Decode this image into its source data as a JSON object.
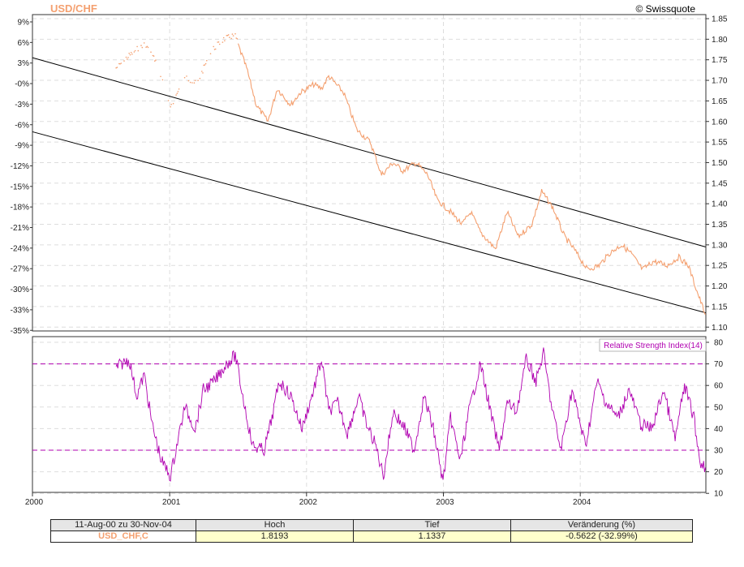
{
  "header": {
    "title": "USD/CHF",
    "credit": "© Swissquote"
  },
  "colors": {
    "price": "#f4a070",
    "title": "#f4a070",
    "rsi": "#b000b0",
    "channel": "#000000",
    "grid": "#dddddd"
  },
  "chart_data": [
    {
      "type": "line",
      "title": "USD/CHF",
      "x_axis_years": [
        "2000",
        "2001",
        "2002",
        "2003",
        "2004"
      ],
      "left_axis_labels": [
        "9%",
        "6%",
        "3%",
        "-0%",
        "-3%",
        "-6%",
        "-9%",
        "-12%",
        "-15%",
        "-18%",
        "-21%",
        "-24%",
        "-27%",
        "-30%",
        "-33%",
        "-35%"
      ],
      "right_axis_labels": [
        "1.85",
        "1.80",
        "1.75",
        "1.70",
        "1.65",
        "1.60",
        "1.55",
        "1.50",
        "1.45",
        "1.40",
        "1.35",
        "1.30",
        "1.25",
        "1.20",
        "1.15",
        "1.10"
      ],
      "ylim": [
        1.1,
        1.85
      ],
      "series": [
        {
          "name": "USD_CHF,C",
          "x": [
            "2000-08-11",
            "2000-09-15",
            "2000-10-25",
            "2000-11-30",
            "2001-01-03",
            "2001-02-10",
            "2001-03-15",
            "2001-04-20",
            "2001-05-25",
            "2001-06-25",
            "2001-07-05",
            "2001-07-25",
            "2001-08-20",
            "2001-09-20",
            "2001-10-15",
            "2001-11-20",
            "2001-12-15",
            "2002-01-20",
            "2002-02-10",
            "2002-03-01",
            "2002-04-10",
            "2002-05-15",
            "2002-06-20",
            "2002-07-20",
            "2002-08-20",
            "2002-09-15",
            "2002-10-20",
            "2002-11-20",
            "2002-12-15",
            "2003-01-20",
            "2003-02-20",
            "2003-03-15",
            "2003-04-10",
            "2003-05-20",
            "2003-06-20",
            "2003-07-20",
            "2003-08-25",
            "2003-09-20",
            "2003-10-20",
            "2003-11-20",
            "2003-12-15",
            "2004-01-20",
            "2004-02-20",
            "2004-03-20",
            "2004-04-20",
            "2004-05-15",
            "2004-06-15",
            "2004-07-15",
            "2004-08-20",
            "2004-09-20",
            "2004-10-15",
            "2004-11-10",
            "2004-11-30"
          ],
          "values": [
            1.73,
            1.76,
            1.79,
            1.74,
            1.63,
            1.71,
            1.69,
            1.77,
            1.8,
            1.81,
            1.78,
            1.73,
            1.64,
            1.6,
            1.68,
            1.64,
            1.67,
            1.69,
            1.68,
            1.71,
            1.67,
            1.58,
            1.55,
            1.47,
            1.5,
            1.48,
            1.5,
            1.47,
            1.41,
            1.38,
            1.35,
            1.38,
            1.33,
            1.29,
            1.38,
            1.32,
            1.35,
            1.43,
            1.39,
            1.32,
            1.29,
            1.24,
            1.25,
            1.28,
            1.3,
            1.28,
            1.24,
            1.26,
            1.25,
            1.27,
            1.25,
            1.18,
            1.13
          ]
        }
      ],
      "low_points_dotted_until": "2001-07-01"
    },
    {
      "type": "line",
      "title": "Relative Strength Index(14)",
      "right_axis_labels": [
        "80",
        "70",
        "60",
        "50",
        "40",
        "30",
        "20",
        "10"
      ],
      "ylim": [
        10,
        80
      ],
      "reference_lines": [
        70,
        30
      ],
      "series": [
        {
          "name": "Relative Strength Index(14)",
          "x": [
            "2000-08-11",
            "2000-08-25",
            "2000-09-15",
            "2000-10-05",
            "2000-10-25",
            "2000-11-15",
            "2000-12-10",
            "2001-01-03",
            "2001-02-10",
            "2001-03-10",
            "2001-04-01",
            "2001-05-01",
            "2001-06-01",
            "2001-06-25",
            "2001-07-15",
            "2001-08-10",
            "2001-09-10",
            "2001-10-01",
            "2001-10-20",
            "2001-11-20",
            "2001-12-20",
            "2002-01-20",
            "2002-02-10",
            "2002-03-01",
            "2002-03-25",
            "2002-04-20",
            "2002-05-20",
            "2002-06-10",
            "2002-07-05",
            "2002-07-25",
            "2002-08-20",
            "2002-09-20",
            "2002-10-15",
            "2002-11-10",
            "2002-12-05",
            "2002-12-31",
            "2003-01-20",
            "2003-02-15",
            "2003-03-10",
            "2003-04-10",
            "2003-05-10",
            "2003-05-30",
            "2003-06-20",
            "2003-07-15",
            "2003-08-10",
            "2003-09-05",
            "2003-09-25",
            "2003-10-15",
            "2003-11-10",
            "2003-12-10",
            "2004-01-15",
            "2004-02-15",
            "2004-03-10",
            "2004-04-10",
            "2004-05-10",
            "2004-06-10",
            "2004-07-10",
            "2004-08-10",
            "2004-09-10",
            "2004-10-05",
            "2004-10-30",
            "2004-11-15",
            "2004-11-30"
          ],
          "values": [
            68,
            70,
            72,
            55,
            65,
            42,
            25,
            18,
            50,
            40,
            58,
            62,
            70,
            74,
            55,
            32,
            30,
            45,
            62,
            55,
            40,
            58,
            72,
            48,
            52,
            38,
            55,
            42,
            32,
            18,
            48,
            40,
            30,
            55,
            40,
            15,
            45,
            25,
            48,
            70,
            45,
            30,
            52,
            48,
            72,
            62,
            75,
            52,
            30,
            58,
            32,
            62,
            52,
            45,
            58,
            42,
            40,
            58,
            35,
            60,
            45,
            25,
            22
          ]
        }
      ]
    }
  ],
  "summary_table": {
    "headers": [
      "11-Aug-00 zu 30-Nov-04",
      "Hoch",
      "Tief",
      "Veränderung (%)"
    ],
    "row": [
      "USD_CHF,C",
      "1.8193",
      "1.1337",
      "-0.5622 (-32.99%)"
    ]
  }
}
